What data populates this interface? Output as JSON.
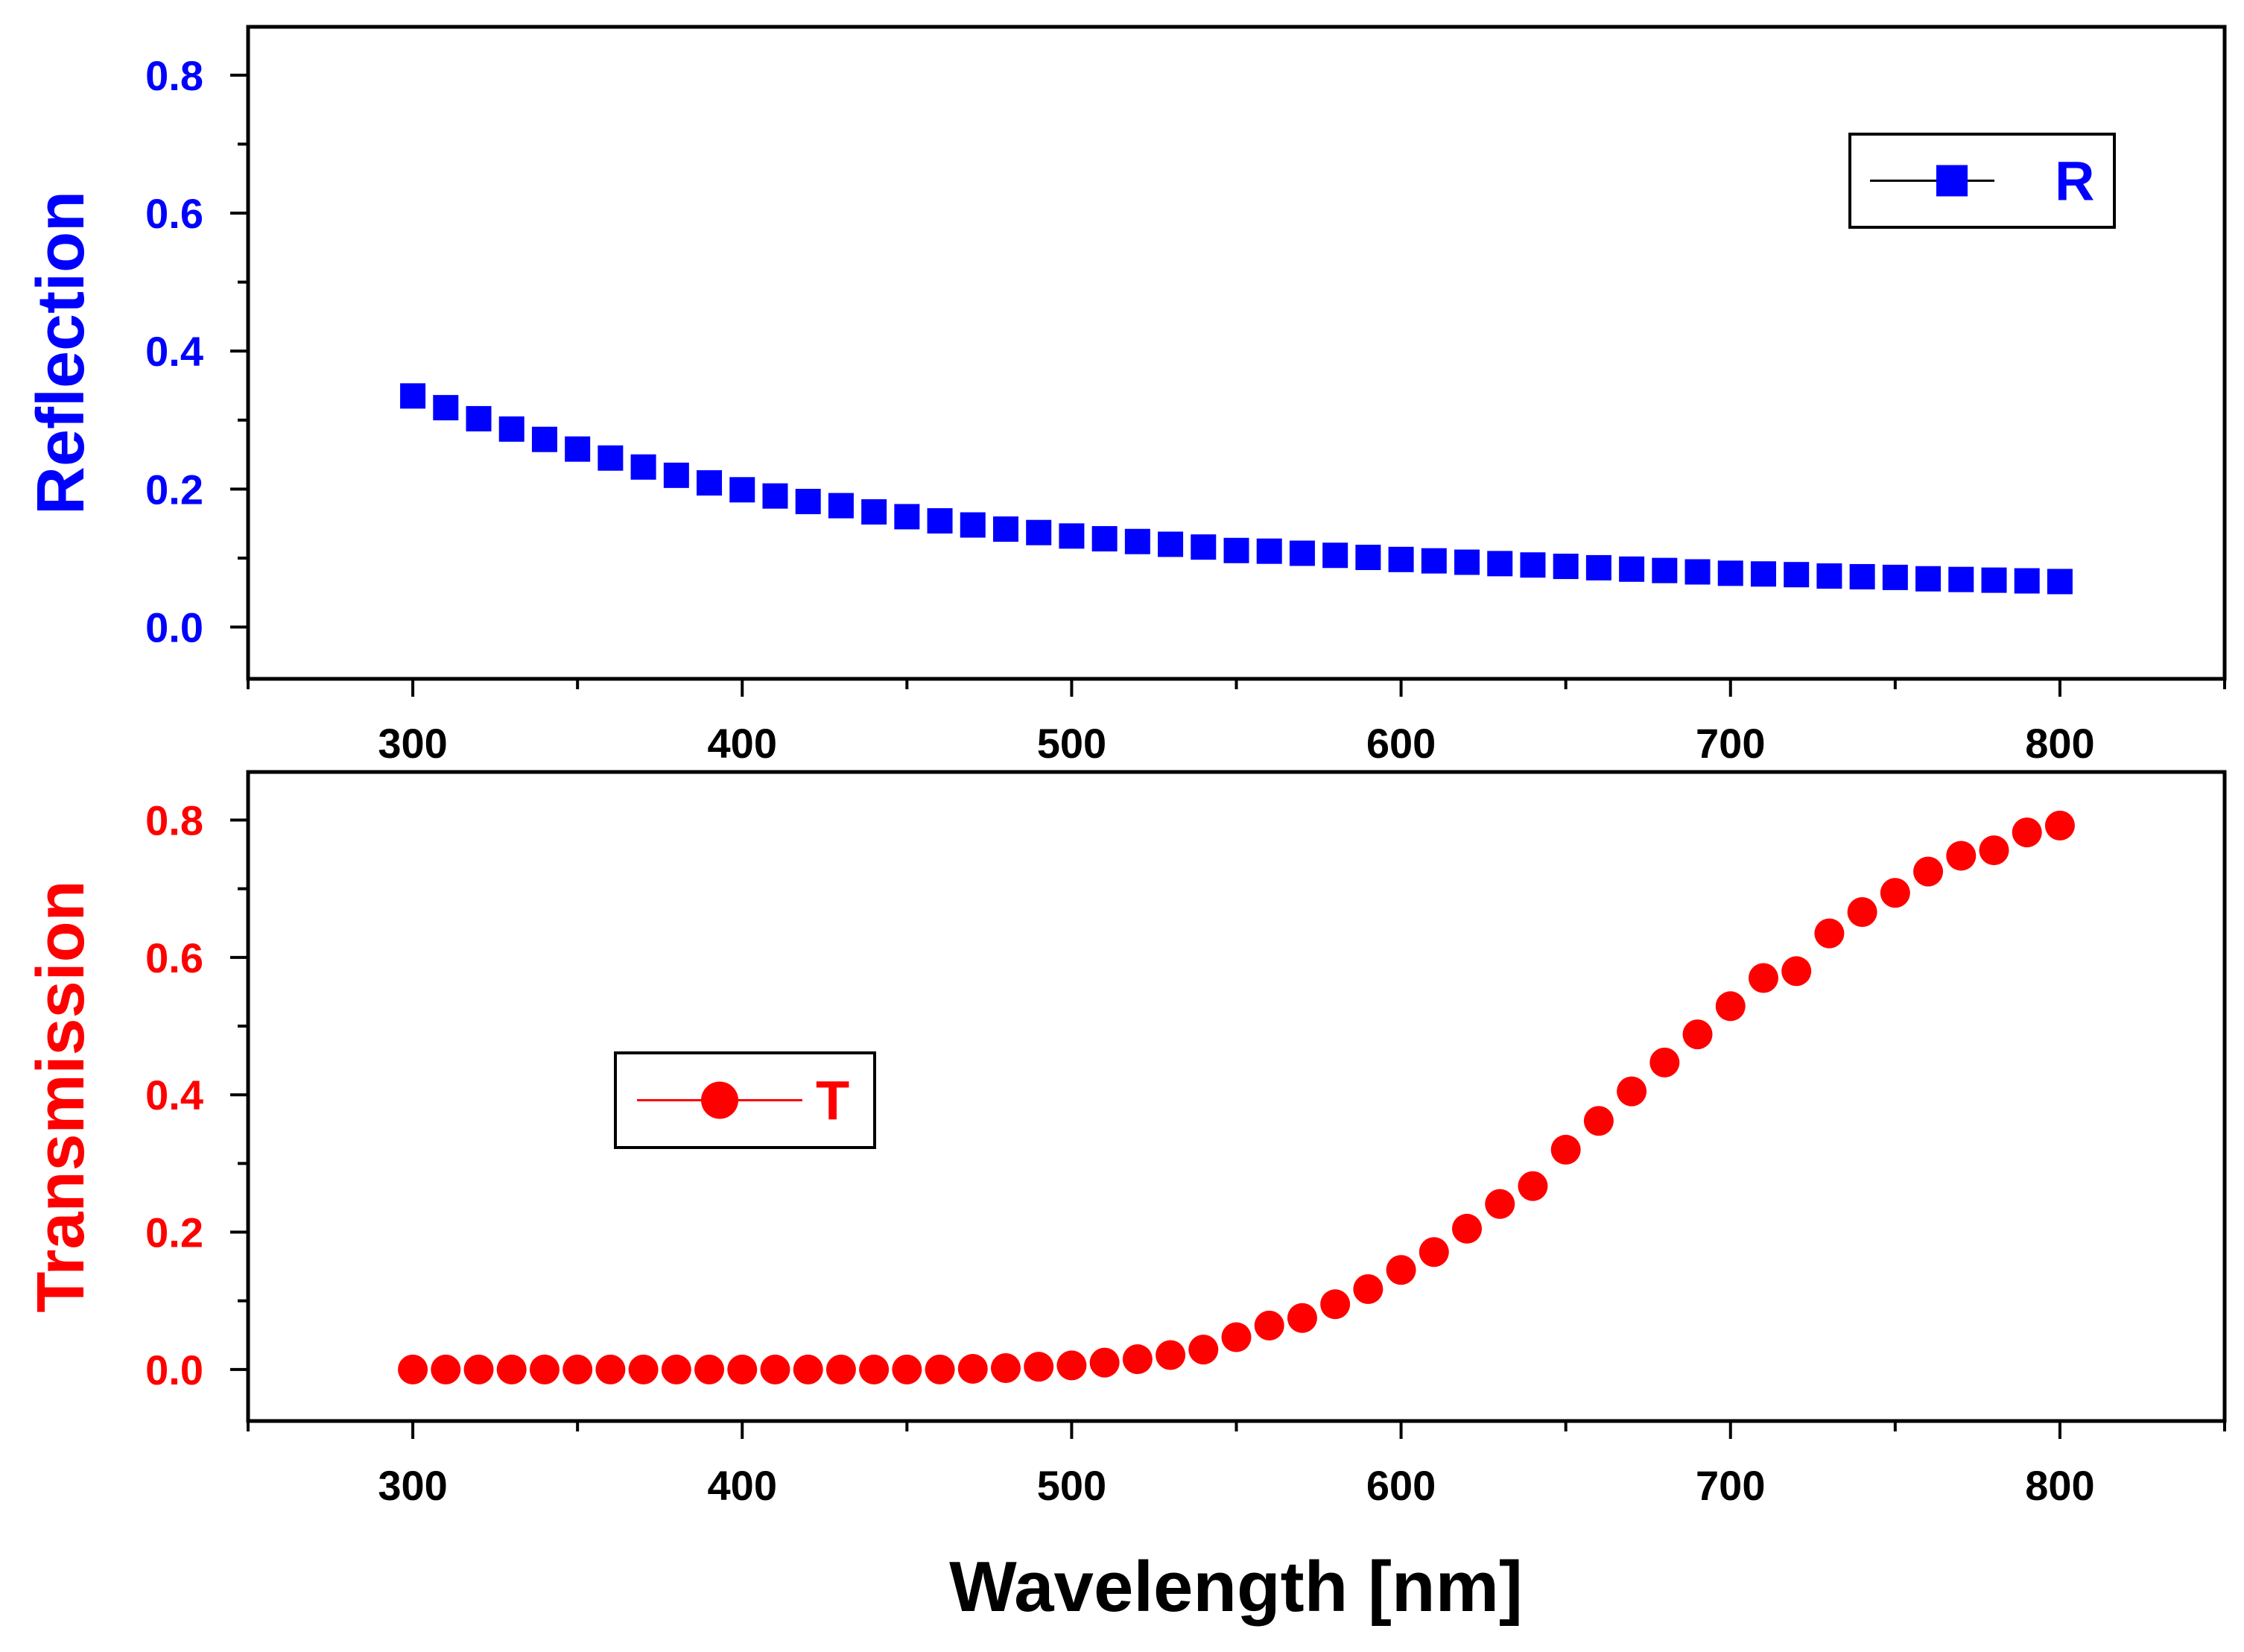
{
  "colors": {
    "reflection": "#0000ff",
    "transmission": "#ff0000",
    "axis": "#000000"
  },
  "chart_data": [
    {
      "type": "scatter",
      "title": "",
      "xlabel": "",
      "ylabel": "Reflection",
      "xlim": [
        250,
        850
      ],
      "ylim": [
        -0.075,
        0.87
      ],
      "xticks": [
        300,
        400,
        500,
        600,
        700,
        800
      ],
      "xtick_labels": [
        "300",
        "400",
        "500",
        "600",
        "700",
        "800"
      ],
      "yticks": [
        0.0,
        0.2,
        0.4,
        0.6,
        0.8
      ],
      "ytick_labels": [
        "0.0",
        "0.2",
        "0.4",
        "0.6",
        "0.8"
      ],
      "legend_position": "top-right",
      "grid": false,
      "marker": "square",
      "series": [
        {
          "name": "R",
          "color": "#0000ff",
          "x": [
            300,
            310,
            320,
            330,
            340,
            350,
            360,
            370,
            380,
            390,
            400,
            410,
            420,
            430,
            440,
            450,
            460,
            470,
            480,
            490,
            500,
            510,
            520,
            530,
            540,
            550,
            560,
            570,
            580,
            590,
            600,
            610,
            620,
            630,
            640,
            650,
            660,
            670,
            680,
            690,
            700,
            710,
            720,
            730,
            740,
            750,
            760,
            770,
            780,
            790,
            800
          ],
          "y": [
            0.335,
            0.318,
            0.302,
            0.287,
            0.272,
            0.258,
            0.245,
            0.232,
            0.22,
            0.209,
            0.199,
            0.19,
            0.182,
            0.176,
            0.167,
            0.16,
            0.154,
            0.148,
            0.142,
            0.137,
            0.132,
            0.128,
            0.124,
            0.12,
            0.116,
            0.111,
            0.11,
            0.107,
            0.104,
            0.101,
            0.098,
            0.096,
            0.094,
            0.092,
            0.09,
            0.088,
            0.086,
            0.084,
            0.082,
            0.08,
            0.078,
            0.077,
            0.076,
            0.074,
            0.073,
            0.072,
            0.07,
            0.069,
            0.068,
            0.067,
            0.066
          ]
        }
      ]
    },
    {
      "type": "scatter",
      "title": "",
      "xlabel": "Wavelength [nm]",
      "ylabel": "Transmission",
      "xlim": [
        250,
        850
      ],
      "ylim": [
        -0.075,
        0.87
      ],
      "xticks": [
        300,
        400,
        500,
        600,
        700,
        800
      ],
      "xtick_labels": [
        "300",
        "400",
        "500",
        "600",
        "700",
        "800"
      ],
      "yticks": [
        0.0,
        0.2,
        0.4,
        0.6,
        0.8
      ],
      "ytick_labels": [
        "0.0",
        "0.2",
        "0.4",
        "0.6",
        "0.8"
      ],
      "legend_position": "center-left",
      "grid": false,
      "marker": "circle",
      "series": [
        {
          "name": "T",
          "color": "#ff0000",
          "x": [
            300,
            310,
            320,
            330,
            340,
            350,
            360,
            370,
            380,
            390,
            400,
            410,
            420,
            430,
            440,
            450,
            460,
            470,
            480,
            490,
            500,
            510,
            520,
            530,
            540,
            550,
            560,
            570,
            580,
            590,
            600,
            610,
            620,
            630,
            640,
            650,
            660,
            670,
            680,
            690,
            700,
            710,
            720,
            730,
            740,
            750,
            760,
            770,
            780,
            790,
            800
          ],
          "y": [
            0.0,
            0.0,
            0.0,
            0.0,
            0.0,
            0.0,
            0.0,
            0.0,
            0.0,
            0.0,
            0.0,
            0.0,
            0.0,
            0.0,
            0.0,
            0.0,
            0.0,
            0.001,
            0.002,
            0.004,
            0.006,
            0.01,
            0.015,
            0.021,
            0.029,
            0.047,
            0.064,
            0.075,
            0.095,
            0.117,
            0.145,
            0.171,
            0.205,
            0.241,
            0.267,
            0.32,
            0.362,
            0.405,
            0.447,
            0.488,
            0.529,
            0.57,
            0.58,
            0.635,
            0.666,
            0.694,
            0.725,
            0.748,
            0.756,
            0.782,
            0.792
          ]
        }
      ]
    }
  ]
}
